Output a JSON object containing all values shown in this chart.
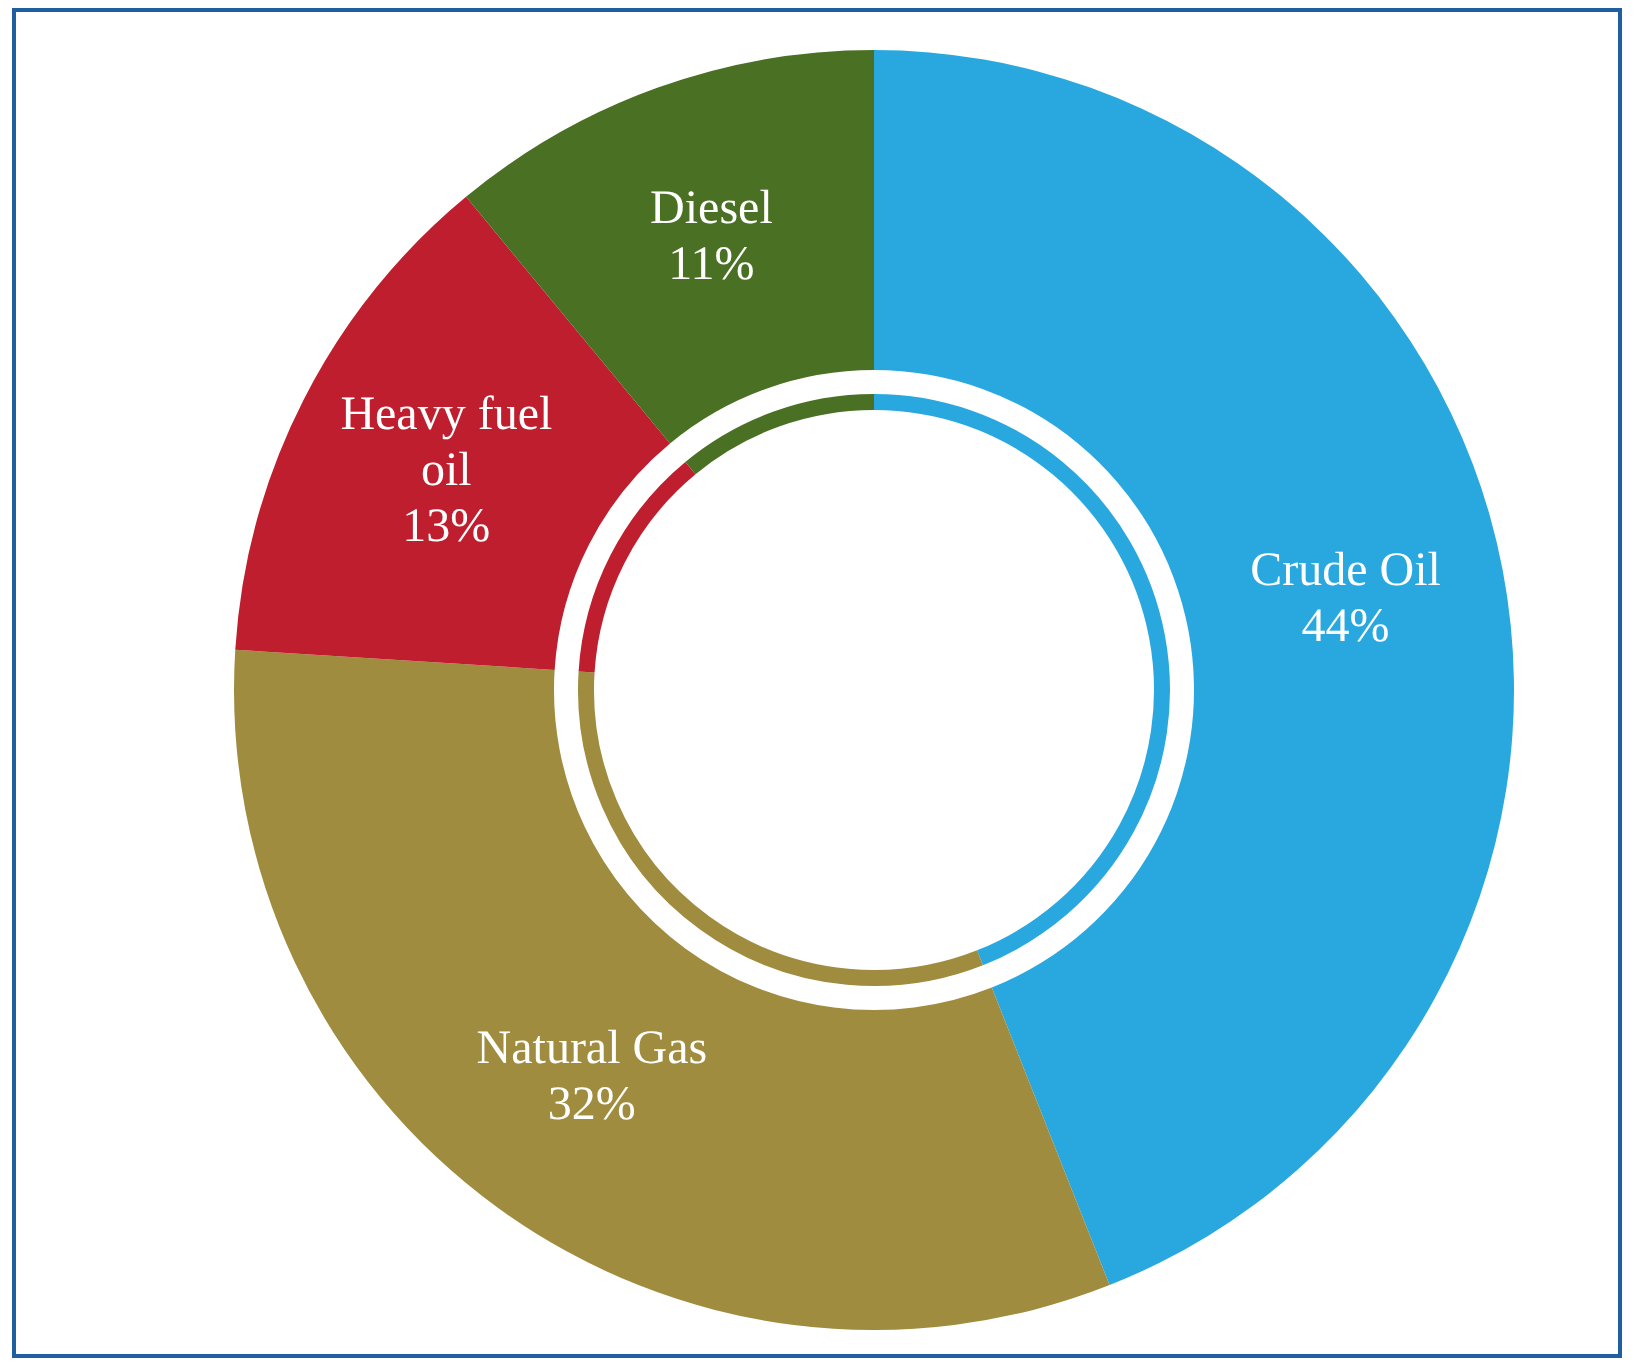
{
  "chart_data": {
    "type": "donut",
    "categories": [
      "Crude Oil",
      "Natural Gas",
      "Heavy fuel oil",
      "Diesel"
    ],
    "values": [
      44,
      32,
      13,
      11
    ],
    "colors": [
      "#29a8e0",
      "#a08c3f",
      "#be1e2d",
      "#4a7023"
    ],
    "value_labels": [
      "44%",
      "32%",
      "13%",
      "11%"
    ],
    "legend": false
  }
}
